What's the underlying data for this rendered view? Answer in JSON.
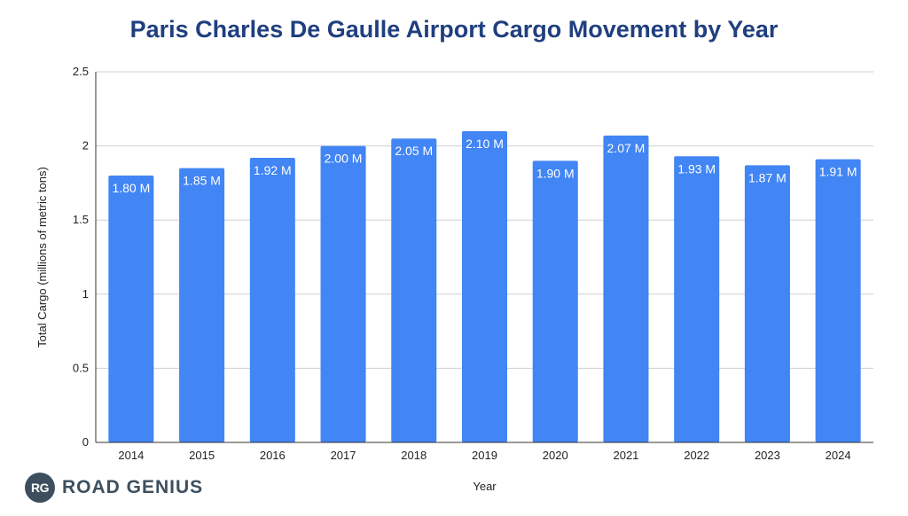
{
  "chart_data": {
    "type": "bar",
    "title": "Paris Charles De Gaulle Airport Cargo Movement by Year",
    "xlabel": "Year",
    "ylabel": "Total Cargo (millions of metric tons)",
    "categories": [
      "2014",
      "2015",
      "2016",
      "2017",
      "2018",
      "2019",
      "2020",
      "2021",
      "2022",
      "2023",
      "2024"
    ],
    "values": [
      1.8,
      1.85,
      1.92,
      2.0,
      2.05,
      2.1,
      1.9,
      2.07,
      1.93,
      1.87,
      1.91
    ],
    "data_labels": [
      "1.80 M",
      "1.85 M",
      "1.92 M",
      "2.00 M",
      "2.05 M",
      "2.10 M",
      "1.90 M",
      "2.07 M",
      "1.93 M",
      "1.87 M",
      "1.91 M"
    ],
    "ylim": [
      0,
      2.5
    ],
    "yticks": [
      "0",
      "0.5",
      "1",
      "1.5",
      "2",
      "2.5"
    ],
    "ytick_values": [
      0,
      0.5,
      1,
      1.5,
      2,
      2.5
    ],
    "grid": true,
    "legend": "none",
    "bar_color": "#4285f4"
  },
  "branding": {
    "badge": "RG",
    "name": "ROAD GENIUS",
    "color": "#3d4f5e"
  }
}
